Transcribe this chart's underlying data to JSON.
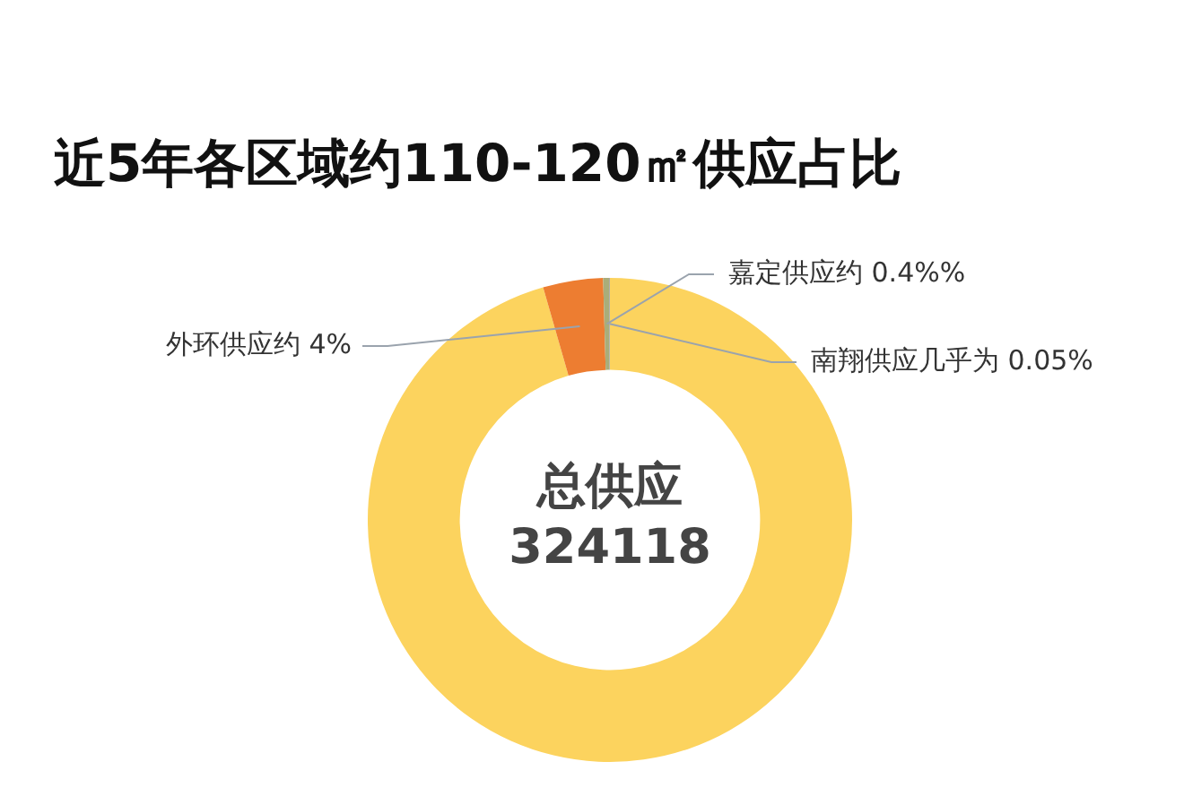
{
  "chart_data": {
    "type": "donut",
    "title": "近5年各区域约110-120㎡供应占比",
    "categories": [
      null,
      "外环供应约",
      "嘉定供应约",
      "南翔供应几乎为"
    ],
    "values": [
      95.55,
      4,
      0.4,
      0.05
    ],
    "colors": [
      "#fcd35e",
      "#ed7d31",
      "#a9ad7a",
      "#9e9e9e"
    ],
    "value_labels": [
      null,
      "4%",
      "0.4%%",
      "0.05%"
    ],
    "annotations": [
      "总供应",
      "324118"
    ]
  }
}
